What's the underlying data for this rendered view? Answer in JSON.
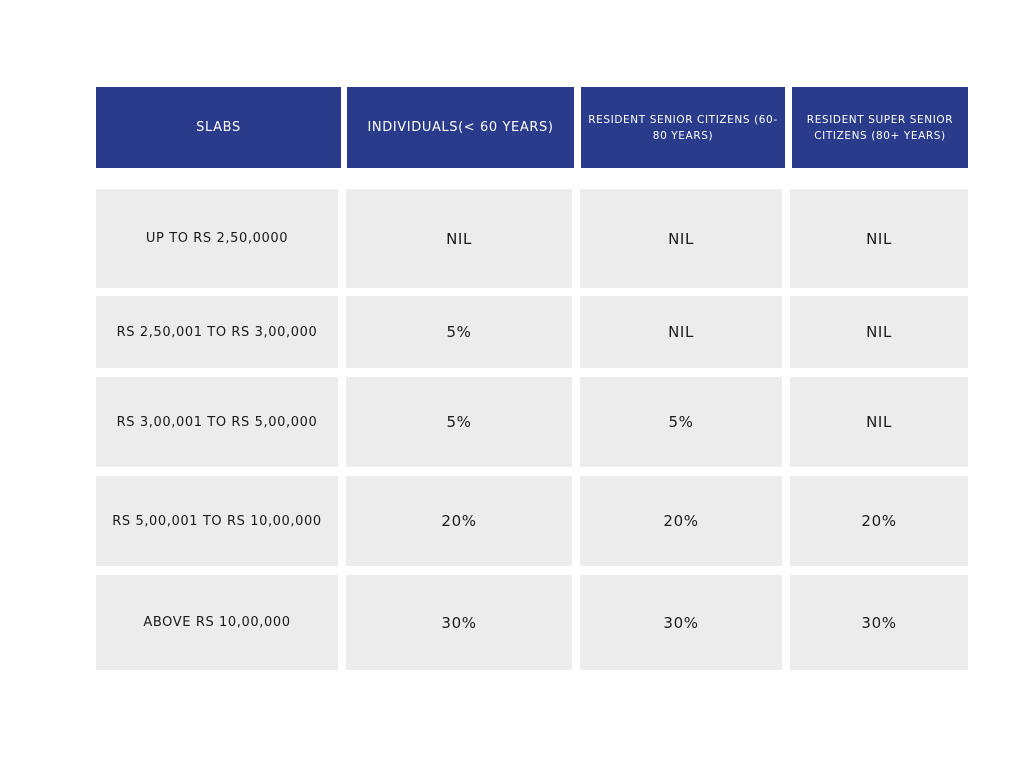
{
  "headers": [
    "SLABS",
    "INDIVIDUALS(< 60 YEARS)",
    "RESIDENT SENIOR CITIZENS (60-80 YEARS)",
    "RESIDENT SUPER SENIOR CITIZENS (80+ YEARS)"
  ],
  "rows": [
    [
      "UP TO RS 2,50,0000",
      "NIL",
      "NIL",
      "NIL"
    ],
    [
      "RS 2,50,001 TO RS 3,00,000",
      "5%",
      "NIL",
      "NIL"
    ],
    [
      "RS 3,00,001 TO RS 5,00,000",
      "5%",
      "5%",
      "NIL"
    ],
    [
      "RS 5,00,001 TO RS 10,00,000",
      "20%",
      "20%",
      "20%"
    ],
    [
      "ABOVE RS 10,00,000",
      "30%",
      "30%",
      "30%"
    ]
  ],
  "colors": {
    "header_bg": "#293b8a",
    "cell_bg": "#ececec"
  }
}
